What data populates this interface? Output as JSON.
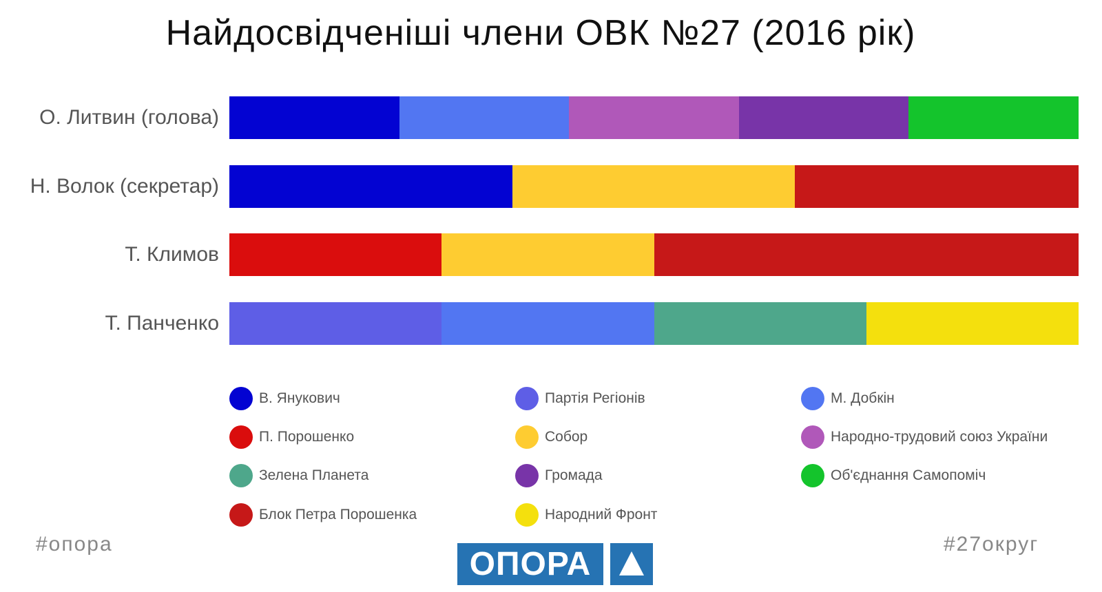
{
  "title": "Найдосвідченіші члени ОВК №27 (2016 рік)",
  "chart_data": {
    "type": "bar",
    "orientation": "horizontal",
    "stacked": true,
    "normalized": true,
    "legend_position": "bottom",
    "grid": false,
    "rows": [
      {
        "label": "О. Литвин (голова)",
        "segments": [
          "В. Янукович",
          "М. Добкін",
          "Народно-трудовий союз України",
          "Громада",
          "Об'єднання Самопоміч"
        ],
        "shares": [
          0.2,
          0.2,
          0.2,
          0.2,
          0.2
        ]
      },
      {
        "label": "Н. Волок (секретар)",
        "segments": [
          "В. Янукович",
          "Собор",
          "Блок Петра Порошенка"
        ],
        "shares": [
          0.333,
          0.333,
          0.334
        ]
      },
      {
        "label": "Т. Климов",
        "segments": [
          "П. Порошенко",
          "Собор",
          "Блок Петра Порошенка"
        ],
        "shares": [
          0.25,
          0.25,
          0.5
        ]
      },
      {
        "label": "Т. Панченко",
        "segments": [
          "Партія Регіонів",
          "М. Добкін",
          "Зелена Планета",
          "Народний Фронт"
        ],
        "shares": [
          0.25,
          0.25,
          0.25,
          0.25
        ]
      }
    ],
    "legend": [
      {
        "name": "В. Янукович",
        "color": "#0303d2"
      },
      {
        "name": "Партія Регіонів",
        "color": "#5e5ee6"
      },
      {
        "name": "М. Добкін",
        "color": "#5276f2"
      },
      {
        "name": "П. Порошенко",
        "color": "#da0d0d"
      },
      {
        "name": "Собор",
        "color": "#fecc31"
      },
      {
        "name": "Народно-трудовий союз України",
        "color": "#b058b9"
      },
      {
        "name": "Зелена Планета",
        "color": "#4ea78b"
      },
      {
        "name": "Громада",
        "color": "#7834a8"
      },
      {
        "name": "Об'єднання Самопоміч",
        "color": "#14c42c"
      },
      {
        "name": "Блок Петра Порошенка",
        "color": "#c61818"
      },
      {
        "name": "Народний Фронт",
        "color": "#f4e00d"
      }
    ]
  },
  "footer": {
    "left_tag": "#опора",
    "right_tag": "#27округ",
    "logo_text": "ОПОРА"
  }
}
